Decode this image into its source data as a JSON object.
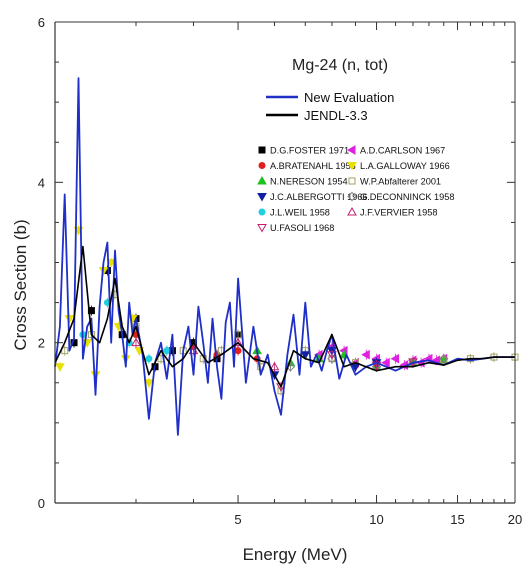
{
  "chart_data": {
    "type": "line",
    "title": "Mg-24 (n, tot)",
    "xlabel": "Energy (MeV)",
    "ylabel": "Cross Section (b)",
    "x_scale": "log",
    "xlim": [
      2,
      20
    ],
    "ylim": [
      0,
      6
    ],
    "x_ticks": [
      {
        "value": 5,
        "label": "5"
      },
      {
        "value": 10,
        "label": "10"
      },
      {
        "value": 15,
        "label": "15"
      },
      {
        "value": 20,
        "label": "20"
      }
    ],
    "y_ticks": [
      {
        "value": 0,
        "label": "0"
      },
      {
        "value": 2,
        "label": "2"
      },
      {
        "value": 4,
        "label": "4"
      },
      {
        "value": 6,
        "label": "6"
      }
    ],
    "grid": false,
    "legend_position": "top-right",
    "series": [
      {
        "name": "New Evaluation",
        "color": "#1f2fc8",
        "x": [
          2.0,
          2.05,
          2.1,
          2.15,
          2.2,
          2.25,
          2.3,
          2.35,
          2.4,
          2.45,
          2.5,
          2.55,
          2.6,
          2.65,
          2.7,
          2.75,
          2.8,
          2.85,
          2.9,
          2.95,
          3.0,
          3.1,
          3.2,
          3.3,
          3.4,
          3.5,
          3.6,
          3.7,
          3.8,
          3.9,
          4.0,
          4.1,
          4.2,
          4.3,
          4.4,
          4.5,
          4.6,
          4.7,
          4.8,
          4.9,
          5.0,
          5.2,
          5.4,
          5.6,
          5.8,
          6.0,
          6.2,
          6.4,
          6.6,
          6.8,
          7.0,
          7.2,
          7.4,
          7.6,
          7.8,
          8.0,
          8.3,
          8.6,
          9.0,
          9.5,
          10.0,
          11.0,
          12.0,
          13.0,
          14.0,
          15.0,
          16.0,
          17.0,
          18.0,
          19.0,
          20.0
        ],
        "values": [
          1.7,
          2.2,
          3.85,
          1.9,
          2.05,
          5.3,
          1.8,
          2.2,
          2.3,
          1.35,
          2.45,
          3.0,
          3.25,
          2.0,
          3.15,
          2.4,
          2.1,
          1.7,
          2.5,
          2.1,
          2.3,
          1.85,
          1.05,
          1.75,
          2.0,
          1.55,
          2.1,
          0.85,
          1.9,
          2.2,
          1.6,
          2.45,
          2.0,
          1.5,
          2.3,
          1.7,
          1.3,
          2.25,
          2.5,
          1.7,
          2.8,
          1.5,
          2.2,
          1.6,
          1.85,
          1.4,
          1.1,
          1.85,
          2.35,
          1.6,
          2.5,
          1.7,
          1.85,
          1.65,
          1.9,
          2.1,
          1.55,
          1.85,
          1.6,
          1.7,
          1.75,
          1.65,
          1.75,
          1.78,
          1.72,
          1.8,
          1.78,
          1.8,
          1.82,
          1.82,
          1.82
        ]
      },
      {
        "name": "JENDL-3.3",
        "color": "#000000",
        "x": [
          2.0,
          2.1,
          2.2,
          2.3,
          2.4,
          2.5,
          2.6,
          2.7,
          2.8,
          2.9,
          3.0,
          3.2,
          3.4,
          3.6,
          3.8,
          4.0,
          4.3,
          4.6,
          5.0,
          5.4,
          5.8,
          6.2,
          6.6,
          7.0,
          7.5,
          8.0,
          8.5,
          9.0,
          10.0,
          11.0,
          12.0,
          13.0,
          14.0,
          15.0,
          16.0,
          17.0,
          18.0,
          19.0,
          20.0
        ],
        "values": [
          1.75,
          2.0,
          2.3,
          3.2,
          2.1,
          2.0,
          2.3,
          2.8,
          2.2,
          2.0,
          2.2,
          1.6,
          1.9,
          1.7,
          1.8,
          2.0,
          1.75,
          1.85,
          2.0,
          1.8,
          1.75,
          1.45,
          1.9,
          1.8,
          1.75,
          2.1,
          1.7,
          1.75,
          1.65,
          1.7,
          1.7,
          1.75,
          1.72,
          1.78,
          1.8,
          1.8,
          1.82,
          1.82,
          1.82
        ]
      },
      {
        "name": "D.G.FOSTER 1971",
        "color": "#000000",
        "marker": "square",
        "x": [
          2.2,
          2.4,
          2.6,
          2.8,
          3.0,
          3.3,
          3.6,
          4.0,
          4.5,
          5.0
        ],
        "values": [
          2.0,
          2.4,
          2.9,
          2.1,
          2.3,
          1.7,
          1.9,
          2.0,
          1.8,
          2.1
        ]
      },
      {
        "name": "A.D.CARLSON 1967",
        "color": "#e020e0",
        "marker": "triangle-left",
        "x": [
          7.5,
          8.0,
          8.5,
          9.0,
          9.5,
          10.0,
          10.5,
          11.0,
          11.5,
          12.0,
          12.5,
          13.0,
          13.5,
          14.0
        ],
        "values": [
          1.85,
          1.95,
          1.9,
          1.75,
          1.85,
          1.8,
          1.75,
          1.8,
          1.72,
          1.78,
          1.75,
          1.8,
          1.78,
          1.8
        ]
      },
      {
        "name": "A.BRATENAHL 1958",
        "color": "#e02020",
        "marker": "circle",
        "x": [
          3.0,
          3.5,
          4.0,
          4.5,
          5.0,
          5.5
        ],
        "values": [
          2.1,
          1.9,
          1.95,
          1.85,
          1.9,
          1.8
        ]
      },
      {
        "name": "L.A.GALLOWAY 1966",
        "color": "#e8e000",
        "marker": "triangle-down",
        "x": [
          2.05,
          2.15,
          2.25,
          2.35,
          2.45,
          2.55,
          2.65,
          2.75,
          2.85,
          2.95,
          3.05,
          3.2
        ],
        "values": [
          1.7,
          2.3,
          3.4,
          2.0,
          1.6,
          2.9,
          3.0,
          2.2,
          1.8,
          2.3,
          1.9,
          1.5
        ]
      },
      {
        "name": "N.NERESON  1954",
        "color": "#20c020",
        "marker": "triangle-up",
        "x": [
          5.5,
          6.5,
          7.5,
          8.5,
          10.0,
          12.0,
          14.0
        ],
        "values": [
          1.9,
          1.75,
          1.8,
          1.85,
          1.7,
          1.75,
          1.78
        ]
      },
      {
        "name": "W.P.Abfalterer 2001",
        "color": "#a0a060",
        "marker": "open-square",
        "x": [
          2.1,
          2.4,
          2.7,
          3.0,
          3.4,
          3.8,
          4.2,
          4.6,
          5.0,
          5.6,
          6.2,
          7.0,
          8.0,
          9.0,
          10.0,
          12.0,
          14.0,
          16.0,
          18.0,
          20.0
        ],
        "values": [
          1.9,
          2.1,
          2.6,
          2.2,
          1.8,
          1.9,
          1.8,
          1.9,
          2.1,
          1.7,
          1.4,
          1.9,
          1.8,
          1.75,
          1.7,
          1.75,
          1.78,
          1.8,
          1.82,
          1.82
        ]
      },
      {
        "name": "J.C.ALBERGOTTI 1966",
        "color": "#1020a0",
        "marker": "triangle-down",
        "x": [
          6.0,
          7.0,
          8.0,
          9.0,
          10.0
        ],
        "values": [
          1.6,
          1.85,
          1.9,
          1.7,
          1.75
        ]
      },
      {
        "name": "G.DECONNINCK 1958",
        "color": "#808080",
        "marker": "open-diamond",
        "x": [
          6.5,
          8.0,
          10.0,
          12.0,
          14.0
        ],
        "values": [
          1.7,
          1.8,
          1.7,
          1.75,
          1.8
        ]
      },
      {
        "name": "J.L.WEIL 1958",
        "color": "#20d0e0",
        "marker": "circle",
        "x": [
          2.3,
          2.6,
          2.9,
          3.2,
          3.5
        ],
        "values": [
          2.1,
          2.5,
          2.0,
          1.8,
          1.9
        ]
      },
      {
        "name": "J.F.VERVIER 1958",
        "color": "#c02070",
        "marker": "open-triangle-up",
        "x": [
          3.0,
          4.0,
          5.0,
          6.0
        ],
        "values": [
          2.0,
          1.9,
          2.0,
          1.7
        ]
      },
      {
        "name": "U.FASOLI 1968",
        "color": "#c02070",
        "marker": "open-triangle-down",
        "x": [
          6.2,
          8.0,
          10.0,
          12.0
        ],
        "values": [
          1.45,
          1.85,
          1.72,
          1.76
        ]
      }
    ]
  }
}
